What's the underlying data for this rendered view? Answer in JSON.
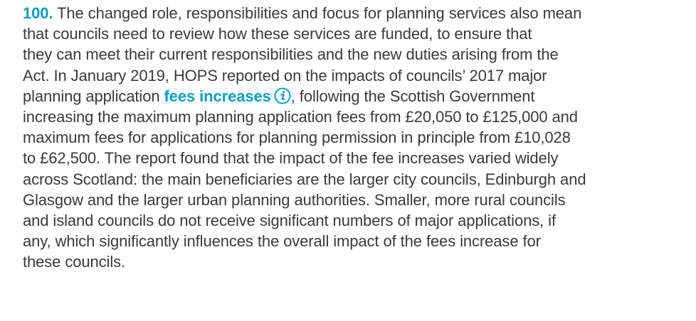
{
  "paragraph": {
    "number": "100.",
    "lines": [
      "The changed role, responsibilities and focus for planning services also mean",
      "that councils need to review how these services are funded, to ensure that",
      "they can meet their current responsibilities and the new duties arising from the",
      "Act. In January 2019, HOPS reported on the impacts of councils’ 2017 major",
      {
        "before": "planning application ",
        "link": "fees increases",
        "after": ", following the Scottish Government"
      },
      "increasing the maximum planning application fees from £20,050 to £125,000 and",
      "maximum fees for applications for planning permission in principle from £10,028",
      "to £62,500. The report found that the impact of the fee increases varied widely",
      "across Scotland: the main beneficiaries are the larger city councils, Edinburgh and",
      "Glasgow and the larger urban planning authorities. Smaller, more rural councils",
      "and island councils do not receive significant numbers of major applications, if",
      "any, which significantly influences the overall impact of the fees increase for",
      "these councils."
    ]
  }
}
